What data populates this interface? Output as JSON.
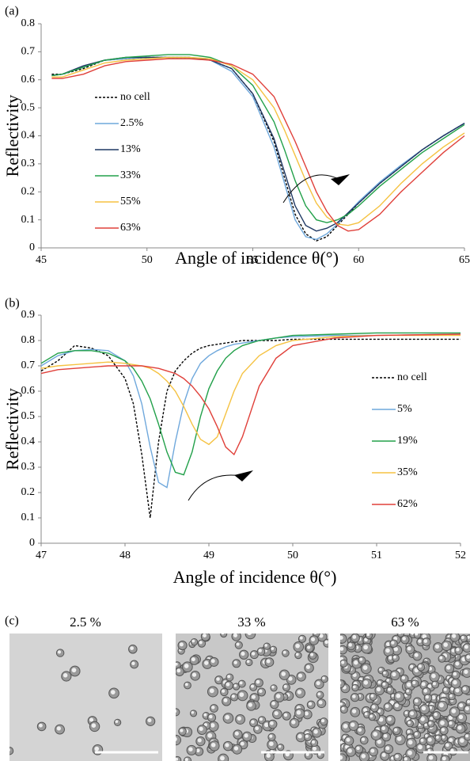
{
  "chart_data": [
    {
      "type": "line",
      "panel_label": "(a)",
      "x_label": "Angle of incidence θ(°)",
      "y_label": "Reflectivity",
      "x": [
        45.5,
        46,
        47,
        48,
        49,
        50,
        51,
        52,
        53,
        54,
        55,
        56,
        56.5,
        57,
        57.5,
        58,
        58.5,
        59,
        59.5,
        60,
        61,
        62,
        63,
        64,
        65
      ],
      "xlim": [
        45,
        65
      ],
      "xticks": [
        45,
        50,
        55,
        60,
        65
      ],
      "ylim": [
        0,
        0.8
      ],
      "yticks": [
        0,
        0.1,
        0.2,
        0.3,
        0.4,
        0.5,
        0.6,
        0.7,
        0.8
      ],
      "legend": "center left",
      "series": [
        {
          "name": "no cell",
          "color": "#000000",
          "linestyle": "dashed",
          "values": [
            0.62,
            0.62,
            0.64,
            0.67,
            0.675,
            0.68,
            0.68,
            0.68,
            0.67,
            0.64,
            0.55,
            0.38,
            0.25,
            0.12,
            0.05,
            0.025,
            0.04,
            0.08,
            0.12,
            0.16,
            0.23,
            0.29,
            0.35,
            0.4,
            0.445
          ]
        },
        {
          "name": "2.5%",
          "color": "#6fa8dc",
          "linestyle": "solid",
          "values": [
            0.615,
            0.62,
            0.645,
            0.67,
            0.675,
            0.68,
            0.68,
            0.68,
            0.67,
            0.63,
            0.54,
            0.36,
            0.23,
            0.1,
            0.04,
            0.03,
            0.05,
            0.085,
            0.125,
            0.165,
            0.235,
            0.295,
            0.35,
            0.4,
            0.445
          ]
        },
        {
          "name": "13%",
          "color": "#1f3864",
          "linestyle": "solid",
          "values": [
            0.615,
            0.62,
            0.65,
            0.67,
            0.68,
            0.68,
            0.68,
            0.68,
            0.67,
            0.64,
            0.55,
            0.39,
            0.27,
            0.15,
            0.08,
            0.06,
            0.07,
            0.09,
            0.125,
            0.16,
            0.23,
            0.29,
            0.35,
            0.4,
            0.445
          ]
        },
        {
          "name": "33%",
          "color": "#22a04a",
          "linestyle": "solid",
          "values": [
            0.615,
            0.62,
            0.645,
            0.67,
            0.68,
            0.685,
            0.69,
            0.69,
            0.68,
            0.65,
            0.58,
            0.45,
            0.35,
            0.24,
            0.15,
            0.1,
            0.09,
            0.1,
            0.12,
            0.15,
            0.22,
            0.28,
            0.34,
            0.39,
            0.44
          ]
        },
        {
          "name": "55%",
          "color": "#f5c242",
          "linestyle": "solid",
          "values": [
            0.61,
            0.61,
            0.635,
            0.66,
            0.67,
            0.675,
            0.68,
            0.68,
            0.675,
            0.65,
            0.6,
            0.5,
            0.42,
            0.33,
            0.24,
            0.16,
            0.11,
            0.085,
            0.08,
            0.09,
            0.15,
            0.23,
            0.3,
            0.36,
            0.41
          ]
        },
        {
          "name": "63%",
          "color": "#e0403a",
          "linestyle": "solid",
          "values": [
            0.605,
            0.605,
            0.62,
            0.65,
            0.665,
            0.67,
            0.675,
            0.675,
            0.67,
            0.655,
            0.62,
            0.54,
            0.46,
            0.38,
            0.29,
            0.2,
            0.13,
            0.08,
            0.06,
            0.065,
            0.12,
            0.2,
            0.27,
            0.34,
            0.4
          ]
        }
      ]
    },
    {
      "type": "line",
      "panel_label": "(b)",
      "x_label": "Angle of incidence θ(°)",
      "y_label": "Reflectivity",
      "x": [
        47,
        47.2,
        47.4,
        47.6,
        47.8,
        48,
        48.1,
        48.2,
        48.3,
        48.4,
        48.5,
        48.6,
        48.7,
        48.8,
        48.9,
        49,
        49.1,
        49.2,
        49.3,
        49.4,
        49.6,
        49.8,
        50,
        50.5,
        51,
        52
      ],
      "xlim": [
        47,
        52
      ],
      "xticks": [
        47,
        48,
        49,
        50,
        51,
        52
      ],
      "ylim": [
        0,
        0.9
      ],
      "yticks": [
        0,
        0.1,
        0.2,
        0.3,
        0.4,
        0.5,
        0.6,
        0.7,
        0.8,
        0.9
      ],
      "legend": "center right",
      "series": [
        {
          "name": "no cell",
          "color": "#000000",
          "linestyle": "dashed",
          "values": [
            0.68,
            0.72,
            0.78,
            0.77,
            0.74,
            0.65,
            0.55,
            0.35,
            0.1,
            0.4,
            0.6,
            0.68,
            0.72,
            0.75,
            0.77,
            0.78,
            0.785,
            0.79,
            0.795,
            0.8,
            0.8,
            0.8,
            0.805,
            0.805,
            0.805,
            0.805
          ]
        },
        {
          "name": "5%",
          "color": "#6fa8dc",
          "linestyle": "solid",
          "values": [
            0.7,
            0.74,
            0.76,
            0.765,
            0.76,
            0.72,
            0.66,
            0.55,
            0.38,
            0.24,
            0.22,
            0.4,
            0.55,
            0.65,
            0.71,
            0.74,
            0.76,
            0.775,
            0.785,
            0.79,
            0.8,
            0.81,
            0.815,
            0.82,
            0.82,
            0.825
          ]
        },
        {
          "name": "19%",
          "color": "#22a04a",
          "linestyle": "solid",
          "values": [
            0.71,
            0.75,
            0.76,
            0.76,
            0.75,
            0.72,
            0.69,
            0.64,
            0.57,
            0.47,
            0.36,
            0.28,
            0.27,
            0.36,
            0.5,
            0.61,
            0.68,
            0.73,
            0.76,
            0.78,
            0.8,
            0.81,
            0.82,
            0.825,
            0.83,
            0.83
          ]
        },
        {
          "name": "35%",
          "color": "#f5c242",
          "linestyle": "solid",
          "values": [
            0.69,
            0.7,
            0.705,
            0.71,
            0.715,
            0.71,
            0.705,
            0.7,
            0.69,
            0.67,
            0.64,
            0.6,
            0.54,
            0.47,
            0.41,
            0.39,
            0.42,
            0.51,
            0.6,
            0.67,
            0.74,
            0.78,
            0.8,
            0.815,
            0.82,
            0.82
          ]
        },
        {
          "name": "62%",
          "color": "#e0403a",
          "linestyle": "solid",
          "values": [
            0.67,
            0.685,
            0.69,
            0.695,
            0.7,
            0.7,
            0.7,
            0.7,
            0.695,
            0.69,
            0.68,
            0.67,
            0.65,
            0.62,
            0.58,
            0.53,
            0.46,
            0.38,
            0.35,
            0.42,
            0.62,
            0.73,
            0.78,
            0.81,
            0.82,
            0.825
          ]
        }
      ]
    }
  ],
  "panel_c": {
    "label": "(c)",
    "captions": [
      "2.5 %",
      "33 %",
      "63 %"
    ]
  }
}
